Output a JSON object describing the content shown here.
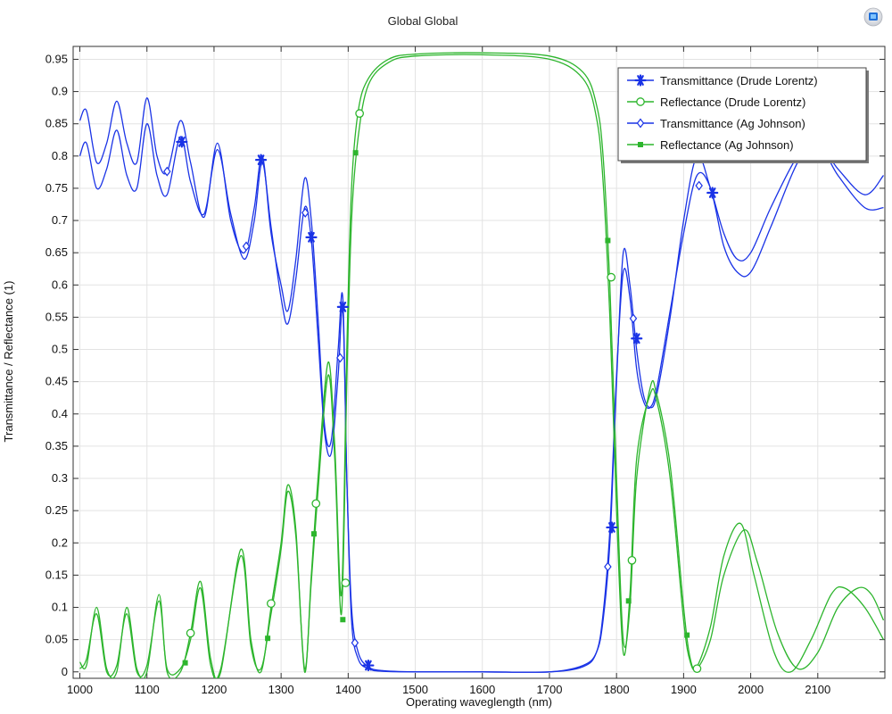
{
  "chart_data": {
    "type": "line",
    "title": "Global  Global",
    "xlabel": "Operating waveglength (nm)",
    "ylabel": "Transmittance / Reflectance (1)",
    "xlim": [
      990,
      2200
    ],
    "ylim": [
      -0.01,
      0.97
    ],
    "xticks": [
      1000,
      1100,
      1200,
      1300,
      1400,
      1500,
      1600,
      1700,
      1800,
      1900,
      2000,
      2100
    ],
    "yticks": [
      0,
      0.05,
      0.1,
      0.15,
      0.2,
      0.25,
      0.3,
      0.35,
      0.4,
      0.45,
      0.5,
      0.55,
      0.6,
      0.65,
      0.7,
      0.75,
      0.8,
      0.85,
      0.9,
      0.95
    ],
    "ytick_labels": [
      "0",
      "0.05",
      "0.1",
      "0.15",
      "0.2",
      "0.25",
      "0.3",
      "0.35",
      "0.4",
      "0.45",
      "0.5",
      "0.55",
      "0.6",
      "0.65",
      "0.7",
      "0.75",
      "0.8",
      "0.85",
      "0.9",
      "0.95"
    ],
    "grid": true,
    "legend_position": "top-right",
    "colors": {
      "transmittance": "#1a33e6",
      "reflectance": "#2db52d"
    },
    "series": [
      {
        "name": "Transmittance (Drude Lorentz)",
        "marker": "asterisk",
        "color": "#1a33e6",
        "points": [
          [
            1000,
            0.855
          ],
          [
            1010,
            0.87
          ],
          [
            1025,
            0.79
          ],
          [
            1040,
            0.82
          ],
          [
            1055,
            0.885
          ],
          [
            1070,
            0.82
          ],
          [
            1085,
            0.79
          ],
          [
            1100,
            0.89
          ],
          [
            1115,
            0.8
          ],
          [
            1130,
            0.775
          ],
          [
            1150,
            0.855
          ],
          [
            1165,
            0.79
          ],
          [
            1185,
            0.705
          ],
          [
            1205,
            0.82
          ],
          [
            1225,
            0.7
          ],
          [
            1245,
            0.65
          ],
          [
            1260,
            0.72
          ],
          [
            1272,
            0.8
          ],
          [
            1285,
            0.68
          ],
          [
            1300,
            0.6
          ],
          [
            1310,
            0.56
          ],
          [
            1322,
            0.64
          ],
          [
            1335,
            0.765
          ],
          [
            1345,
            0.7
          ],
          [
            1355,
            0.55
          ],
          [
            1365,
            0.38
          ],
          [
            1375,
            0.36
          ],
          [
            1385,
            0.5
          ],
          [
            1392,
            0.58
          ],
          [
            1398,
            0.3
          ],
          [
            1405,
            0.1
          ],
          [
            1415,
            0.03
          ],
          [
            1430,
            0.008
          ],
          [
            1450,
            0.002
          ],
          [
            1500,
            0.0
          ],
          [
            1600,
            0.0
          ],
          [
            1700,
            0.0
          ],
          [
            1750,
            0.01
          ],
          [
            1770,
            0.03
          ],
          [
            1780,
            0.08
          ],
          [
            1790,
            0.2
          ],
          [
            1800,
            0.45
          ],
          [
            1810,
            0.65
          ],
          [
            1820,
            0.6
          ],
          [
            1830,
            0.5
          ],
          [
            1840,
            0.43
          ],
          [
            1850,
            0.41
          ],
          [
            1860,
            0.43
          ],
          [
            1880,
            0.55
          ],
          [
            1900,
            0.7
          ],
          [
            1920,
            0.8
          ],
          [
            1940,
            0.75
          ],
          [
            1960,
            0.68
          ],
          [
            1980,
            0.64
          ],
          [
            2000,
            0.65
          ],
          [
            2030,
            0.72
          ],
          [
            2070,
            0.8
          ],
          [
            2100,
            0.82
          ],
          [
            2130,
            0.77
          ],
          [
            2170,
            0.72
          ],
          [
            2198,
            0.72
          ]
        ]
      },
      {
        "name": "Reflectance (Drude Lorentz)",
        "marker": "circle",
        "color": "#2db52d",
        "points": [
          [
            1000,
            0.015
          ],
          [
            1010,
            0.01
          ],
          [
            1025,
            0.1
          ],
          [
            1040,
            0.005
          ],
          [
            1055,
            0.0
          ],
          [
            1070,
            0.1
          ],
          [
            1085,
            0.005
          ],
          [
            1100,
            0.0
          ],
          [
            1118,
            0.12
          ],
          [
            1130,
            0.0
          ],
          [
            1150,
            0.0
          ],
          [
            1165,
            0.06
          ],
          [
            1180,
            0.14
          ],
          [
            1195,
            0.02
          ],
          [
            1210,
            0.0
          ],
          [
            1240,
            0.19
          ],
          [
            1255,
            0.05
          ],
          [
            1270,
            0.0
          ],
          [
            1285,
            0.1
          ],
          [
            1300,
            0.2
          ],
          [
            1310,
            0.29
          ],
          [
            1322,
            0.22
          ],
          [
            1335,
            0.0
          ],
          [
            1345,
            0.15
          ],
          [
            1355,
            0.3
          ],
          [
            1370,
            0.48
          ],
          [
            1380,
            0.35
          ],
          [
            1390,
            0.12
          ],
          [
            1398,
            0.5
          ],
          [
            1405,
            0.75
          ],
          [
            1415,
            0.87
          ],
          [
            1430,
            0.92
          ],
          [
            1460,
            0.95
          ],
          [
            1500,
            0.958
          ],
          [
            1600,
            0.96
          ],
          [
            1700,
            0.955
          ],
          [
            1750,
            0.93
          ],
          [
            1770,
            0.88
          ],
          [
            1780,
            0.8
          ],
          [
            1790,
            0.6
          ],
          [
            1800,
            0.3
          ],
          [
            1810,
            0.05
          ],
          [
            1820,
            0.1
          ],
          [
            1830,
            0.3
          ],
          [
            1850,
            0.44
          ],
          [
            1860,
            0.43
          ],
          [
            1880,
            0.32
          ],
          [
            1900,
            0.1
          ],
          [
            1910,
            0.02
          ],
          [
            1920,
            0.005
          ],
          [
            1940,
            0.05
          ],
          [
            1960,
            0.15
          ],
          [
            1990,
            0.22
          ],
          [
            2010,
            0.17
          ],
          [
            2040,
            0.06
          ],
          [
            2070,
            0.005
          ],
          [
            2100,
            0.03
          ],
          [
            2130,
            0.1
          ],
          [
            2160,
            0.13
          ],
          [
            2180,
            0.12
          ],
          [
            2198,
            0.08
          ]
        ]
      },
      {
        "name": "Transmittance (Ag Johnson)",
        "marker": "diamond",
        "color": "#1a33e6",
        "points": [
          [
            1000,
            0.8
          ],
          [
            1010,
            0.82
          ],
          [
            1025,
            0.75
          ],
          [
            1040,
            0.78
          ],
          [
            1055,
            0.84
          ],
          [
            1070,
            0.77
          ],
          [
            1085,
            0.75
          ],
          [
            1100,
            0.85
          ],
          [
            1115,
            0.77
          ],
          [
            1130,
            0.74
          ],
          [
            1150,
            0.83
          ],
          [
            1165,
            0.76
          ],
          [
            1185,
            0.71
          ],
          [
            1205,
            0.81
          ],
          [
            1225,
            0.71
          ],
          [
            1245,
            0.64
          ],
          [
            1260,
            0.7
          ],
          [
            1272,
            0.79
          ],
          [
            1285,
            0.69
          ],
          [
            1300,
            0.58
          ],
          [
            1310,
            0.54
          ],
          [
            1322,
            0.61
          ],
          [
            1335,
            0.72
          ],
          [
            1345,
            0.67
          ],
          [
            1355,
            0.52
          ],
          [
            1365,
            0.37
          ],
          [
            1375,
            0.34
          ],
          [
            1385,
            0.46
          ],
          [
            1392,
            0.56
          ],
          [
            1398,
            0.3
          ],
          [
            1405,
            0.08
          ],
          [
            1415,
            0.02
          ],
          [
            1430,
            0.005
          ],
          [
            1450,
            0.001
          ],
          [
            1500,
            0.0
          ],
          [
            1600,
            0.0
          ],
          [
            1700,
            0.0
          ],
          [
            1750,
            0.008
          ],
          [
            1770,
            0.03
          ],
          [
            1780,
            0.09
          ],
          [
            1790,
            0.22
          ],
          [
            1800,
            0.46
          ],
          [
            1810,
            0.62
          ],
          [
            1820,
            0.58
          ],
          [
            1830,
            0.47
          ],
          [
            1840,
            0.42
          ],
          [
            1850,
            0.41
          ],
          [
            1860,
            0.44
          ],
          [
            1880,
            0.56
          ],
          [
            1900,
            0.68
          ],
          [
            1920,
            0.77
          ],
          [
            1940,
            0.75
          ],
          [
            1960,
            0.66
          ],
          [
            1980,
            0.62
          ],
          [
            2000,
            0.62
          ],
          [
            2030,
            0.69
          ],
          [
            2070,
            0.79
          ],
          [
            2100,
            0.82
          ],
          [
            2130,
            0.78
          ],
          [
            2170,
            0.74
          ],
          [
            2198,
            0.77
          ]
        ]
      },
      {
        "name": "Reflectance (Ag Johnson)",
        "marker": "square",
        "color": "#2db52d",
        "points": [
          [
            1000,
            0.005
          ],
          [
            1010,
            0.02
          ],
          [
            1025,
            0.09
          ],
          [
            1040,
            0.0
          ],
          [
            1055,
            0.01
          ],
          [
            1070,
            0.09
          ],
          [
            1085,
            0.0
          ],
          [
            1100,
            0.01
          ],
          [
            1118,
            0.11
          ],
          [
            1130,
            0.005
          ],
          [
            1150,
            0.005
          ],
          [
            1165,
            0.05
          ],
          [
            1180,
            0.13
          ],
          [
            1195,
            0.01
          ],
          [
            1210,
            0.005
          ],
          [
            1240,
            0.18
          ],
          [
            1255,
            0.04
          ],
          [
            1270,
            0.005
          ],
          [
            1285,
            0.09
          ],
          [
            1300,
            0.19
          ],
          [
            1310,
            0.28
          ],
          [
            1322,
            0.21
          ],
          [
            1335,
            0.005
          ],
          [
            1345,
            0.14
          ],
          [
            1355,
            0.28
          ],
          [
            1370,
            0.46
          ],
          [
            1380,
            0.33
          ],
          [
            1390,
            0.09
          ],
          [
            1398,
            0.45
          ],
          [
            1405,
            0.7
          ],
          [
            1415,
            0.83
          ],
          [
            1430,
            0.91
          ],
          [
            1460,
            0.945
          ],
          [
            1500,
            0.955
          ],
          [
            1600,
            0.957
          ],
          [
            1700,
            0.95
          ],
          [
            1750,
            0.92
          ],
          [
            1770,
            0.86
          ],
          [
            1780,
            0.76
          ],
          [
            1790,
            0.55
          ],
          [
            1800,
            0.25
          ],
          [
            1810,
            0.03
          ],
          [
            1820,
            0.12
          ],
          [
            1830,
            0.33
          ],
          [
            1850,
            0.43
          ],
          [
            1860,
            0.42
          ],
          [
            1880,
            0.3
          ],
          [
            1900,
            0.08
          ],
          [
            1910,
            0.015
          ],
          [
            1920,
            0.008
          ],
          [
            1940,
            0.07
          ],
          [
            1960,
            0.18
          ],
          [
            1985,
            0.23
          ],
          [
            2005,
            0.15
          ],
          [
            2035,
            0.03
          ],
          [
            2060,
            0.0
          ],
          [
            2090,
            0.05
          ],
          [
            2120,
            0.12
          ],
          [
            2140,
            0.13
          ],
          [
            2170,
            0.1
          ],
          [
            2198,
            0.05
          ]
        ]
      }
    ],
    "markers": [
      {
        "series": 0,
        "x": 1152,
        "y": 0.822
      },
      {
        "series": 0,
        "x": 1270,
        "y": 0.794
      },
      {
        "series": 0,
        "x": 1345,
        "y": 0.674
      },
      {
        "series": 0,
        "x": 1392,
        "y": 0.566
      },
      {
        "series": 0,
        "x": 1430,
        "y": 0.01
      },
      {
        "series": 0,
        "x": 1793,
        "y": 0.224
      },
      {
        "series": 0,
        "x": 1830,
        "y": 0.517
      },
      {
        "series": 0,
        "x": 1943,
        "y": 0.743
      },
      {
        "series": 1,
        "x": 1165,
        "y": 0.06
      },
      {
        "series": 1,
        "x": 1285,
        "y": 0.106
      },
      {
        "series": 1,
        "x": 1352,
        "y": 0.261
      },
      {
        "series": 1,
        "x": 1396,
        "y": 0.138
      },
      {
        "series": 1,
        "x": 1417,
        "y": 0.866
      },
      {
        "series": 1,
        "x": 1792,
        "y": 0.612
      },
      {
        "series": 1,
        "x": 1823,
        "y": 0.173
      },
      {
        "series": 1,
        "x": 1920,
        "y": 0.005
      },
      {
        "series": 2,
        "x": 1130,
        "y": 0.776
      },
      {
        "series": 2,
        "x": 1248,
        "y": 0.66
      },
      {
        "series": 2,
        "x": 1336,
        "y": 0.712
      },
      {
        "series": 2,
        "x": 1388,
        "y": 0.487
      },
      {
        "series": 2,
        "x": 1410,
        "y": 0.045
      },
      {
        "series": 2,
        "x": 1787,
        "y": 0.163
      },
      {
        "series": 2,
        "x": 1825,
        "y": 0.548
      },
      {
        "series": 2,
        "x": 1923,
        "y": 0.754
      },
      {
        "series": 3,
        "x": 1157,
        "y": 0.014
      },
      {
        "series": 3,
        "x": 1280,
        "y": 0.052
      },
      {
        "series": 3,
        "x": 1349,
        "y": 0.214
      },
      {
        "series": 3,
        "x": 1392,
        "y": 0.081
      },
      {
        "series": 3,
        "x": 1411,
        "y": 0.805
      },
      {
        "series": 3,
        "x": 1787,
        "y": 0.669
      },
      {
        "series": 3,
        "x": 1818,
        "y": 0.11
      },
      {
        "series": 3,
        "x": 1905,
        "y": 0.057
      }
    ]
  },
  "app_logo_icon": "comsol-logo-icon"
}
